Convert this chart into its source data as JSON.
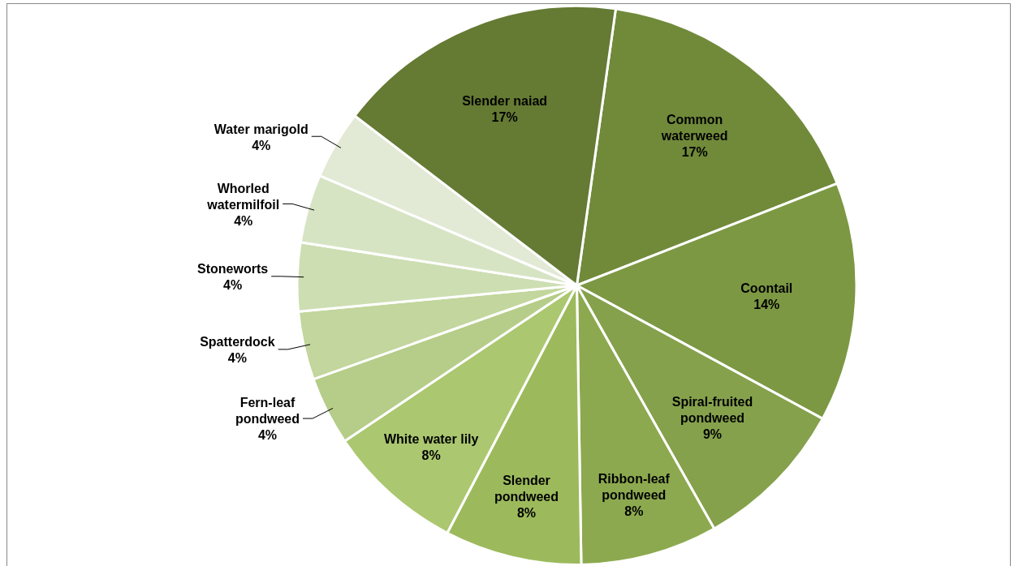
{
  "chart_data": {
    "type": "pie",
    "categories": [
      "Common waterweed",
      "Coontail",
      "Spiral-fruited pondweed",
      "Ribbon-leaf pondweed",
      "Slender pondweed",
      "White water lily",
      "Fern-leaf pondweed",
      "Spatterdock",
      "Stoneworts",
      "Whorled watermilfoil",
      "Water marigold",
      "Slender naiad"
    ],
    "values": [
      17,
      14,
      9,
      8,
      8,
      8,
      4,
      4,
      4,
      4,
      4,
      17
    ],
    "value_labels": [
      "17%",
      "14%",
      "9%",
      "8%",
      "8%",
      "8%",
      "4%",
      "4%",
      "4%",
      "4%",
      "4%",
      "17%"
    ],
    "colors": [
      "#708a3a",
      "#7c9843",
      "#85a14c",
      "#8ca94f",
      "#9cba5c",
      "#abc770",
      "#b5cd88",
      "#c2d69d",
      "#cddeb2",
      "#d7e4c4",
      "#e2ead6",
      "#657a33"
    ],
    "legend": false
  }
}
